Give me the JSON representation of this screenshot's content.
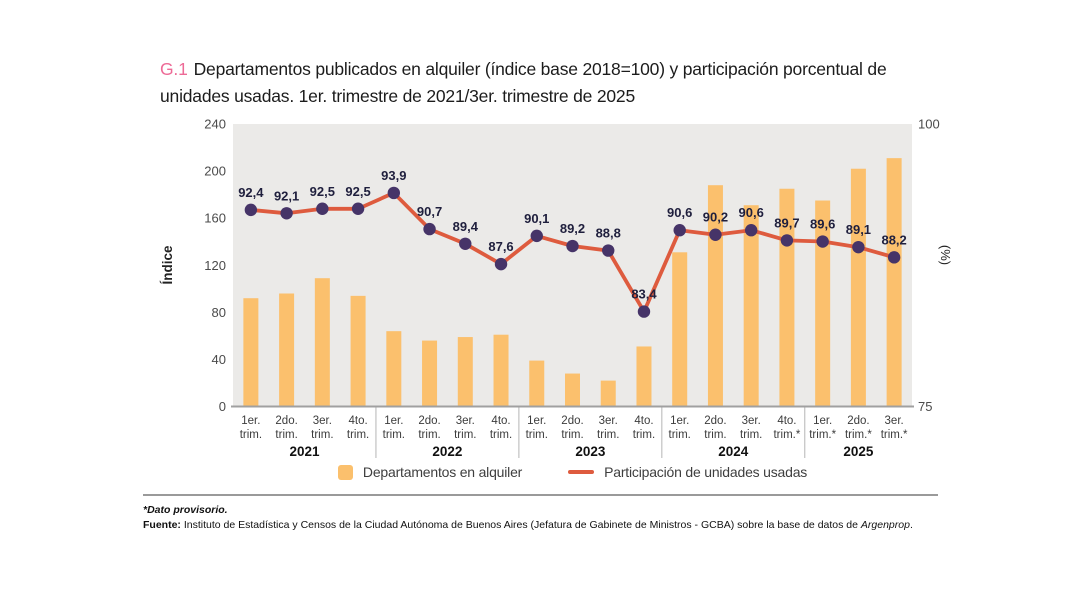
{
  "title": {
    "tag": "G.1",
    "text": "Departamentos publicados en alquiler (índice base 2018=100) y participación porcentual de unidades usadas. 1er. trimestre de 2021/3er. trimestre de 2025"
  },
  "chart_data": {
    "type": "bar+line",
    "x_groups": [
      {
        "label": "2021",
        "span": 4
      },
      {
        "label": "2022",
        "span": 4
      },
      {
        "label": "2023",
        "span": 4
      },
      {
        "label": "2024",
        "span": 4
      },
      {
        "label": "2025",
        "span": 3
      }
    ],
    "x_ticks": [
      {
        "l1": "1er.",
        "l2": "trim."
      },
      {
        "l1": "2do.",
        "l2": "trim."
      },
      {
        "l1": "3er.",
        "l2": "trim."
      },
      {
        "l1": "4to.",
        "l2": "trim."
      },
      {
        "l1": "1er.",
        "l2": "trim."
      },
      {
        "l1": "2do.",
        "l2": "trim."
      },
      {
        "l1": "3er.",
        "l2": "trim."
      },
      {
        "l1": "4to.",
        "l2": "trim."
      },
      {
        "l1": "1er.",
        "l2": "trim."
      },
      {
        "l1": "2do.",
        "l2": "trim."
      },
      {
        "l1": "3er.",
        "l2": "trim."
      },
      {
        "l1": "4to.",
        "l2": "trim."
      },
      {
        "l1": "1er.",
        "l2": "trim."
      },
      {
        "l1": "2do.",
        "l2": "trim."
      },
      {
        "l1": "3er.",
        "l2": "trim."
      },
      {
        "l1": "4to.",
        "l2": "trim.*"
      },
      {
        "l1": "1er.",
        "l2": "trim.*"
      },
      {
        "l1": "2do.",
        "l2": "trim.*"
      },
      {
        "l1": "3er.",
        "l2": "trim.*"
      }
    ],
    "y_left": {
      "label": "Índice",
      "ticks": [
        0,
        40,
        80,
        120,
        160,
        200,
        240
      ],
      "range": [
        0,
        240
      ]
    },
    "y_right": {
      "label": "(%)",
      "ticks": [
        75,
        100
      ],
      "range": [
        75,
        100
      ]
    },
    "series": [
      {
        "name": "Departamentos en alquiler",
        "type": "bar",
        "axis": "left",
        "values": [
          92,
          96,
          109,
          94,
          64,
          56,
          59,
          61,
          39,
          28,
          22,
          51,
          131,
          188,
          171,
          185,
          175,
          202,
          211
        ]
      },
      {
        "name": "Participación de unidades usadas",
        "type": "line",
        "axis": "right",
        "values": [
          92.4,
          92.1,
          92.5,
          92.5,
          93.9,
          90.7,
          89.4,
          87.6,
          90.1,
          89.2,
          88.8,
          83.4,
          90.6,
          90.2,
          90.6,
          89.7,
          89.6,
          89.1,
          88.2
        ],
        "labels": [
          "92,4",
          "92,1",
          "92,5",
          "92,5",
          "93,9",
          "90,7",
          "89,4",
          "87,6",
          "90,1",
          "89,2",
          "88,8",
          "83,4",
          "90,6",
          "90,2",
          "90,6",
          "89,7",
          "89,6",
          "89,1",
          "88,2"
        ]
      }
    ],
    "grid": false,
    "legend_position": "bottom"
  },
  "colors": {
    "title_tag": "#ED6A96",
    "bar": "#FBC06D",
    "line": "#DE5B3E",
    "marker": "#463468",
    "plot_bg": "#EBEAE8",
    "axis_text": "#4b4b4b",
    "tick_text": "#3c3c3c",
    "year_text": "#111111",
    "point_label": "#1f1f3d",
    "baseline": "#a0a0a0",
    "separator": "#b4b4b4"
  },
  "legend": {
    "bar_label": "Departamentos en alquiler",
    "line_label": "Participación de unidades usadas"
  },
  "footnotes": {
    "provisional": "*Dato provisorio.",
    "source_label": "Fuente:",
    "source_text": " Instituto de Estadística y Censos de la Ciudad Autónoma de Buenos Aires (Jefatura de Gabinete de Ministros - GCBA) sobre la base de datos de ",
    "source_db": "Argenprop",
    "source_end": "."
  }
}
